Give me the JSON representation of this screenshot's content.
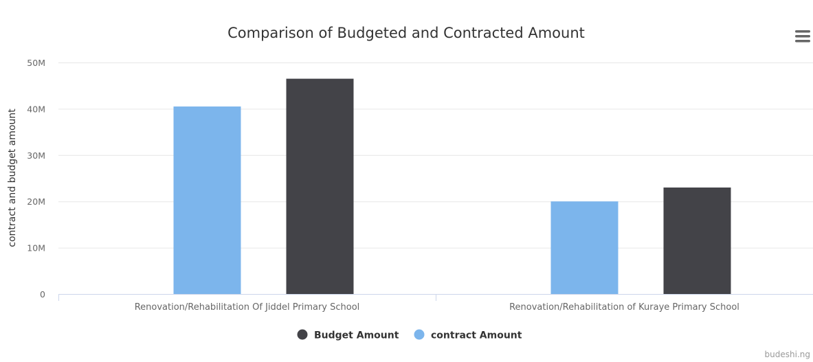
{
  "chart_data": {
    "type": "bar",
    "title": "Comparison of Budgeted and Contracted Amount",
    "ylabel": "contract and budget amount",
    "xlabel": "",
    "categories": [
      "Renovation/Rehabilitation Of Jiddel Primary School",
      "Renovation/Rehabilitation of Kuraye Primary School"
    ],
    "series": [
      {
        "name": "contract Amount",
        "color": "#7cb5ec",
        "values": [
          40500000,
          20000000
        ]
      },
      {
        "name": "Budget Amount",
        "color": "#434348",
        "values": [
          46500000,
          23000000
        ]
      }
    ],
    "ylim": [
      0,
      50000000
    ],
    "yticks": [
      0,
      10000000,
      20000000,
      30000000,
      40000000,
      50000000
    ],
    "ytick_labels": [
      "0",
      "10M",
      "20M",
      "30M",
      "40M",
      "50M"
    ],
    "grid": true,
    "legend_position": "bottom-center",
    "legend_order": [
      "Budget Amount",
      "contract Amount"
    ]
  },
  "credit": "budeshi.ng",
  "menu_icon": "hamburger-menu-icon"
}
